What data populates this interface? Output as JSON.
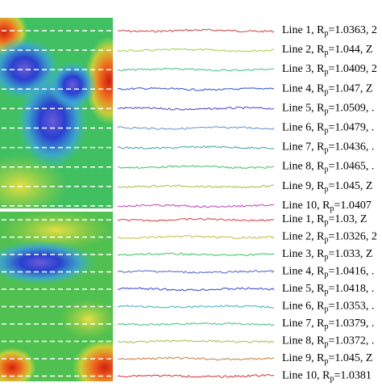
{
  "panels": [
    {
      "labels": [
        {
          "text": "Line 1, R",
          "sub": "p",
          "rest": "=1.0363, 2"
        },
        {
          "text": "Line 2, R",
          "sub": "p",
          "rest": "=1.044, Z"
        },
        {
          "text": "Line 3, R",
          "sub": "p",
          "rest": "=1.0409, 2"
        },
        {
          "text": "Line 4, R",
          "sub": "p",
          "rest": "=1.047, Z"
        },
        {
          "text": "Line 5, R",
          "sub": "p",
          "rest": "=1.0509, ."
        },
        {
          "text": "Line 6, R",
          "sub": "p",
          "rest": "=1.0479, ."
        },
        {
          "text": "Line 7, R",
          "sub": "p",
          "rest": "=1.0436, ."
        },
        {
          "text": "Line 8, R",
          "sub": "p",
          "rest": "=1.0465, ."
        },
        {
          "text": "Line 9, R",
          "sub": "p",
          "rest": "=1.045, Z"
        },
        {
          "text": "Line 10, R",
          "sub": "p",
          "rest": "=1.0407"
        }
      ]
    },
    {
      "labels": [
        {
          "text": "Line 1, R",
          "sub": "p",
          "rest": "=1.03, Z"
        },
        {
          "text": "Line 2, R",
          "sub": "p",
          "rest": "=1.0326, 2"
        },
        {
          "text": "Line 3, R",
          "sub": "p",
          "rest": "=1.033, Z"
        },
        {
          "text": "Line 4, R",
          "sub": "p",
          "rest": "=1.0416, ."
        },
        {
          "text": "Line 5, R",
          "sub": "p",
          "rest": "=1.0418, ."
        },
        {
          "text": "Line 6, R",
          "sub": "p",
          "rest": "=1.0353, ."
        },
        {
          "text": "Line 7, R",
          "sub": "p",
          "rest": "=1.0379, ."
        },
        {
          "text": "Line 8, R",
          "sub": "p",
          "rest": "=1.0372, ."
        },
        {
          "text": "Line 9, R",
          "sub": "p",
          "rest": "=1.045, Z"
        },
        {
          "text": "Line 10, R",
          "sub": "p",
          "rest": "=1.0381"
        }
      ]
    }
  ]
}
